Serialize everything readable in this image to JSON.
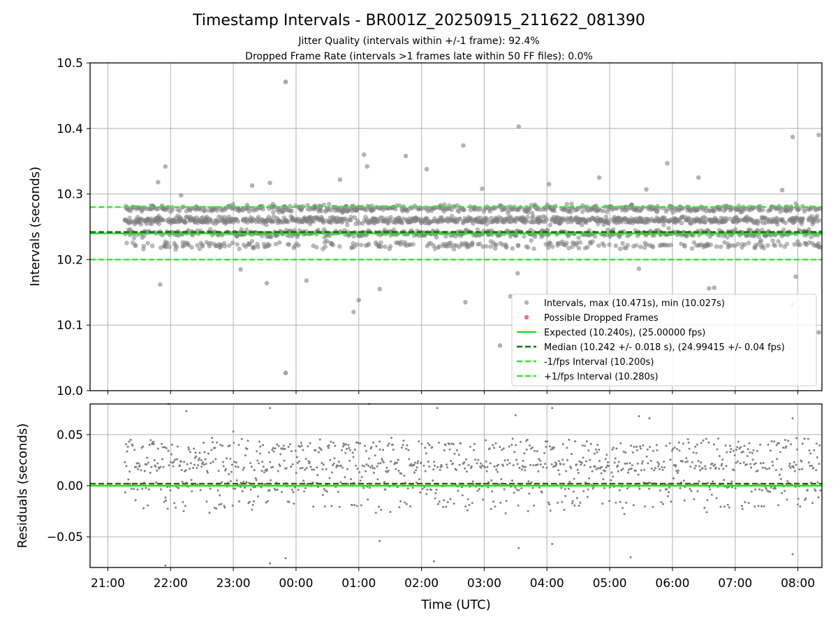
{
  "chart_data": [
    {
      "type": "scatter",
      "title": "Timestamp Intervals - BR001Z_20250915_211622_081390",
      "subtitle_lines": [
        "Jitter Quality (intervals within +/-1 frame): 92.4%",
        "Dropped Frame Rate (intervals >1 frames late within 50 FF files): 0.0%"
      ],
      "ylabel": "Intervals (seconds)",
      "xlabel": "",
      "ylim": [
        10.0,
        10.5
      ],
      "xlim": [
        "2025-09-15 20:43",
        "2025-09-16 08:23"
      ],
      "yticks": [
        "10.0",
        "10.1",
        "10.2",
        "10.3",
        "10.4",
        "10.5"
      ],
      "ytick_values": [
        10.0,
        10.1,
        10.2,
        10.3,
        10.4,
        10.5
      ],
      "grid": true,
      "legend_position": "lower-right",
      "series": [
        {
          "name": "Intervals, max (10.471s), min (10.027s)",
          "kind": "points",
          "color": "#808080",
          "time_range": [
            "2025-09-15 21:16",
            "2025-09-16 08:23"
          ],
          "x": [
            "21:55",
            "23:35",
            "01:05",
            "01:08",
            "01:45",
            "02:40",
            "03:33",
            "04:50",
            "05:55",
            "06:25",
            "07:55",
            "08:20",
            "21:48",
            "22:10",
            "23:18",
            "00:42",
            "02:05",
            "02:58",
            "04:02",
            "05:35",
            "07:45",
            "21:50",
            "23:32",
            "01:20",
            "03:25",
            "05:28",
            "06:40",
            "07:58",
            "23:07",
            "00:10",
            "01:00",
            "02:42",
            "03:15",
            "06:35",
            "07:55",
            "08:20",
            "00:55",
            "03:32"
          ],
          "values": [
            10.342,
            10.317,
            10.36,
            10.342,
            10.358,
            10.374,
            10.403,
            10.325,
            10.347,
            10.325,
            10.387,
            10.39,
            10.318,
            10.298,
            10.313,
            10.322,
            10.338,
            10.308,
            10.315,
            10.307,
            10.306,
            10.162,
            10.164,
            10.155,
            10.144,
            10.186,
            10.157,
            10.174,
            10.185,
            10.168,
            10.138,
            10.135,
            10.069,
            10.156,
            10.131,
            10.089,
            10.12,
            10.179
          ],
          "max": 10.471,
          "min": 10.027,
          "max_time": "23:50",
          "min_time": "23:50",
          "core_bands": [
            10.222,
            10.24,
            10.26,
            10.278
          ]
        },
        {
          "name": "Possible Dropped Frames",
          "kind": "points",
          "color": "#ee3333",
          "values": []
        },
        {
          "name": "Expected (10.240s), (25.00000 fps)",
          "kind": "hline",
          "value": 10.24,
          "color": "#22dd22",
          "style": "solid"
        },
        {
          "name": "Median (10.242 +/- 0.018 s), (24.99415 +/- 0.04 fps)",
          "kind": "hline",
          "value": 10.242,
          "color": "#007700",
          "style": "dashed"
        },
        {
          "name": "-1/fps Interval (10.200s)",
          "kind": "hline",
          "value": 10.2,
          "color": "#22ee22",
          "style": "dashed"
        },
        {
          "name": "+1/fps Interval (10.280s)",
          "kind": "hline",
          "value": 10.28,
          "color": "#22ee22",
          "style": "dashed"
        }
      ]
    },
    {
      "type": "scatter",
      "ylabel": "Residuals (seconds)",
      "xlabel": "Time (UTC)",
      "ylim": [
        -0.08,
        0.08
      ],
      "xlim": [
        "2025-09-15 20:43",
        "2025-09-16 08:23"
      ],
      "yticks": [
        "−0.05",
        "0.00",
        "0.05"
      ],
      "ytick_values": [
        -0.05,
        0.0,
        0.05
      ],
      "xticks": [
        "21:00",
        "22:00",
        "23:00",
        "00:00",
        "01:00",
        "02:00",
        "03:00",
        "04:00",
        "05:00",
        "06:00",
        "07:00",
        "08:00"
      ],
      "grid": true,
      "series": [
        {
          "name": "Residuals",
          "kind": "points",
          "color": "#808080",
          "time_range": [
            "2025-09-15 21:16",
            "2025-09-16 08:23"
          ],
          "core_bands": [
            -0.018,
            0.0,
            0.02,
            0.038
          ],
          "x": [
            "21:58",
            "22:15",
            "23:00",
            "23:35",
            "01:10",
            "02:15",
            "03:30",
            "04:05",
            "05:28",
            "05:38",
            "07:55",
            "21:55",
            "23:35",
            "23:50",
            "01:20",
            "02:12",
            "03:33",
            "04:05",
            "05:20",
            "07:55"
          ],
          "values": [
            0.08,
            0.073,
            0.053,
            0.076,
            0.08,
            0.076,
            0.069,
            0.076,
            0.068,
            0.066,
            0.066,
            -0.078,
            -0.076,
            -0.071,
            -0.054,
            -0.074,
            -0.061,
            -0.057,
            -0.07,
            -0.067
          ]
        },
        {
          "name": "Expected",
          "kind": "hline",
          "value": 0.0,
          "color": "#22dd22",
          "style": "solid"
        },
        {
          "name": "Median",
          "kind": "hline",
          "value": 0.002,
          "color": "#007700",
          "style": "dashed"
        }
      ]
    }
  ]
}
